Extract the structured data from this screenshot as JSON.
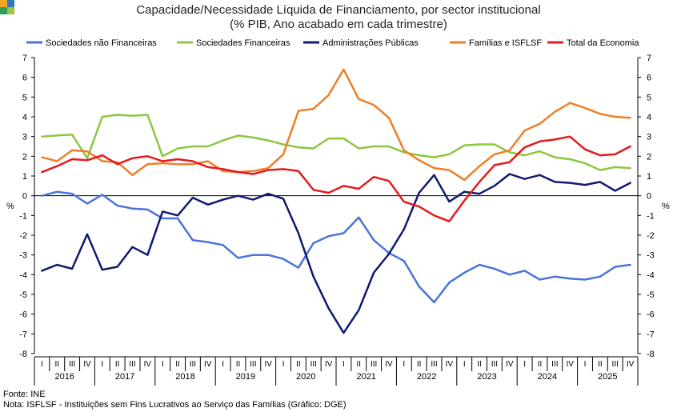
{
  "chart_data": {
    "type": "line",
    "title": "Capacidade/Necessidade Líquida de Financiamento, por sector institucional",
    "subtitle": "(% PIB, Ano acabado em cada trimestre)",
    "ylabel_left": "%",
    "ylabel_right": "%",
    "ylim": [
      -8,
      7
    ],
    "yticks": [
      -8,
      -7,
      -6,
      -5,
      -4,
      -3,
      -2,
      -1,
      0,
      1,
      2,
      3,
      4,
      5,
      6,
      7
    ],
    "legend_position": "top",
    "grid": false,
    "quarters": [
      "I",
      "II",
      "III",
      "IV"
    ],
    "years": [
      "2016",
      "2017",
      "2018",
      "2019",
      "2020",
      "2021",
      "2022",
      "2023",
      "2024",
      "2025"
    ],
    "series": [
      {
        "name": "Sociedades não Financeiras",
        "color": "#4a74d9",
        "values": [
          0.0,
          0.2,
          0.1,
          -0.4,
          0.05,
          -0.5,
          -0.65,
          -0.7,
          -1.15,
          -1.15,
          -2.25,
          -2.35,
          -2.5,
          -3.15,
          -3.0,
          -3.0,
          -3.2,
          -3.65,
          -2.4,
          -2.05,
          -1.9,
          -1.1,
          -2.25,
          -2.9,
          -3.3,
          -4.6,
          -5.4,
          -4.4,
          -3.9,
          -3.5,
          -3.7,
          -4.0,
          -3.8,
          -4.25,
          -4.1,
          -4.2,
          -4.25,
          -4.1,
          -3.6,
          -3.5
        ]
      },
      {
        "name": "Sociedades Financeiras",
        "color": "#8dc63f",
        "values": [
          3.0,
          3.05,
          3.1,
          1.9,
          4.0,
          4.1,
          4.05,
          4.1,
          2.0,
          2.4,
          2.5,
          2.5,
          2.8,
          3.05,
          2.95,
          2.8,
          2.6,
          2.45,
          2.4,
          2.9,
          2.9,
          2.4,
          2.5,
          2.5,
          2.2,
          2.05,
          1.95,
          2.1,
          2.55,
          2.6,
          2.6,
          2.2,
          2.05,
          2.25,
          1.95,
          1.85,
          1.65,
          1.3,
          1.45,
          1.4
        ]
      },
      {
        "name": "Administrações Públicas",
        "color": "#0f1a6e",
        "values": [
          -3.8,
          -3.5,
          -3.7,
          -1.95,
          -3.75,
          -3.6,
          -2.6,
          -3.0,
          -0.8,
          -1.0,
          -0.1,
          -0.45,
          -0.2,
          0.0,
          -0.2,
          0.1,
          -0.15,
          -1.9,
          -4.1,
          -5.7,
          -6.95,
          -5.8,
          -3.9,
          -2.95,
          -1.7,
          0.15,
          1.05,
          -0.3,
          0.2,
          0.1,
          0.5,
          1.1,
          0.85,
          1.05,
          0.7,
          0.65,
          0.55,
          0.7,
          0.25,
          0.65
        ]
      },
      {
        "name": "Famílias e ISFLSF",
        "color": "#f07e26",
        "values": [
          1.95,
          1.75,
          2.3,
          2.25,
          1.75,
          1.7,
          1.05,
          1.6,
          1.65,
          1.6,
          1.6,
          1.75,
          1.25,
          1.2,
          1.25,
          1.4,
          2.1,
          4.3,
          4.4,
          5.1,
          6.4,
          4.9,
          4.6,
          3.95,
          2.3,
          1.8,
          1.4,
          1.3,
          0.8,
          1.5,
          2.1,
          2.3,
          3.3,
          3.65,
          4.25,
          4.7,
          4.45,
          4.15,
          4.0,
          3.95
        ]
      },
      {
        "name": "Total da Economia",
        "color": "#e41a1c",
        "values": [
          1.2,
          1.5,
          1.85,
          1.8,
          2.05,
          1.6,
          1.9,
          2.0,
          1.75,
          1.85,
          1.75,
          1.45,
          1.35,
          1.2,
          1.1,
          1.3,
          1.35,
          1.25,
          0.3,
          0.15,
          0.5,
          0.35,
          0.95,
          0.75,
          -0.3,
          -0.55,
          -1.0,
          -1.3,
          -0.25,
          0.7,
          1.55,
          1.7,
          2.45,
          2.75,
          2.85,
          3.0,
          2.35,
          2.05,
          2.1,
          2.5
        ]
      }
    ]
  },
  "footer": {
    "source": "Fonte: INE",
    "note": "Nota: ISFLSF - Instituições sem Fins Lucrativos ao Serviço das Famílias (Gráfico: DGE)"
  },
  "logo_colors": [
    "#f5a623",
    "#2e7bc4",
    "#2e9e5b",
    "#a0c341"
  ]
}
